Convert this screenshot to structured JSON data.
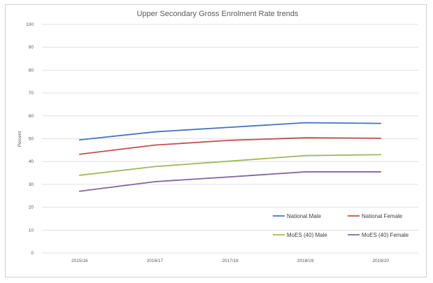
{
  "chart_data": {
    "type": "line",
    "title": "Upper Secondary Gross Enrolment Rate trends",
    "xlabel": "",
    "ylabel": "Percent",
    "ylim": [
      0,
      100
    ],
    "yticks": [
      0,
      10,
      20,
      30,
      40,
      50,
      60,
      70,
      80,
      90,
      100
    ],
    "grid": true,
    "legend_position": "bottom-right",
    "categories": [
      "2015/16",
      "2016/17",
      "2017/18",
      "2018/19",
      "2019/20"
    ],
    "series": [
      {
        "name": "National Male",
        "color": "#4472C4",
        "values": [
          49.5,
          53,
          55,
          57,
          56.7
        ]
      },
      {
        "name": "National Female",
        "color": "#C0504D",
        "values": [
          43.2,
          47.2,
          49.3,
          50.4,
          50.2
        ]
      },
      {
        "name": "MoES (40) Male",
        "color": "#9BBB59",
        "values": [
          34,
          37.8,
          40.2,
          42.6,
          43
        ]
      },
      {
        "name": "MoES (40) Female",
        "color": "#8064A2",
        "values": [
          27,
          31.2,
          33.3,
          35.5,
          35.5
        ]
      }
    ]
  }
}
